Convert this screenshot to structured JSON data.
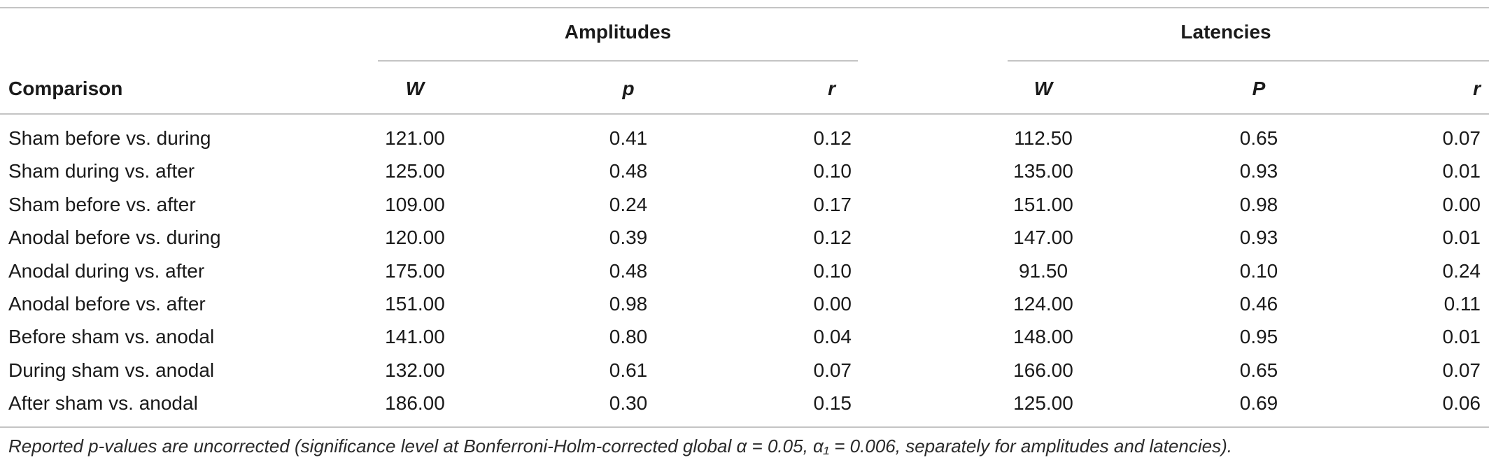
{
  "table": {
    "group_headers": {
      "amplitudes": "Amplitudes",
      "latencies": "Latencies"
    },
    "columns": {
      "comparison": "Comparison",
      "amp_w": "W",
      "amp_p": "p",
      "amp_r": "r",
      "lat_w": "W",
      "lat_p": "P",
      "lat_r": "r"
    },
    "rows": [
      {
        "comparison": "Sham before vs. during",
        "amp_w": "121.00",
        "amp_p": "0.41",
        "amp_r": "0.12",
        "lat_w": "112.50",
        "lat_p": "0.65",
        "lat_r": "0.07"
      },
      {
        "comparison": "Sham during vs. after",
        "amp_w": "125.00",
        "amp_p": "0.48",
        "amp_r": "0.10",
        "lat_w": "135.00",
        "lat_p": "0.93",
        "lat_r": "0.01"
      },
      {
        "comparison": "Sham before vs. after",
        "amp_w": "109.00",
        "amp_p": "0.24",
        "amp_r": "0.17",
        "lat_w": "151.00",
        "lat_p": "0.98",
        "lat_r": "0.00"
      },
      {
        "comparison": "Anodal before vs. during",
        "amp_w": "120.00",
        "amp_p": "0.39",
        "amp_r": "0.12",
        "lat_w": "147.00",
        "lat_p": "0.93",
        "lat_r": "0.01"
      },
      {
        "comparison": "Anodal during vs. after",
        "amp_w": "175.00",
        "amp_p": "0.48",
        "amp_r": "0.10",
        "lat_w": "91.50",
        "lat_p": "0.10",
        "lat_r": "0.24"
      },
      {
        "comparison": "Anodal before vs. after",
        "amp_w": "151.00",
        "amp_p": "0.98",
        "amp_r": "0.00",
        "lat_w": "124.00",
        "lat_p": "0.46",
        "lat_r": "0.11"
      },
      {
        "comparison": "Before sham vs. anodal",
        "amp_w": "141.00",
        "amp_p": "0.80",
        "amp_r": "0.04",
        "lat_w": "148.00",
        "lat_p": "0.95",
        "lat_r": "0.01"
      },
      {
        "comparison": "During sham vs. anodal",
        "amp_w": "132.00",
        "amp_p": "0.61",
        "amp_r": "0.07",
        "lat_w": "166.00",
        "lat_p": "0.65",
        "lat_r": "0.07"
      },
      {
        "comparison": "After sham vs. anodal",
        "amp_w": "186.00",
        "amp_p": "0.30",
        "amp_r": "0.15",
        "lat_w": "125.00",
        "lat_p": "0.69",
        "lat_r": "0.06"
      }
    ],
    "footnote": "Reported p-values are uncorrected (significance level at Bonferroni-Holm-corrected global α = 0.05, α₁ = 0.006, separately for amplitudes and latencies)."
  }
}
